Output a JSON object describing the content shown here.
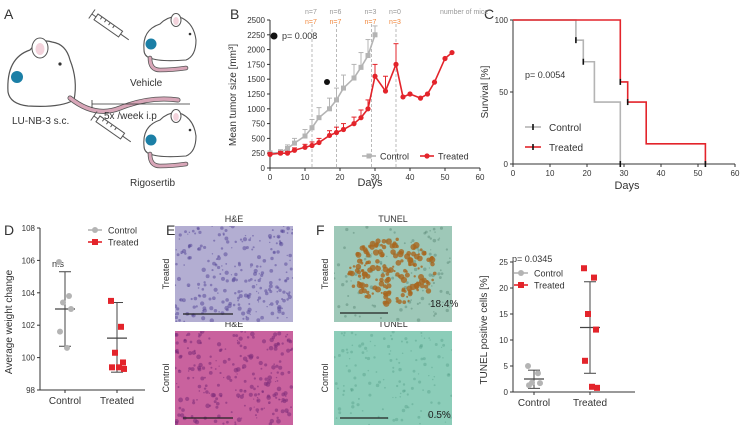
{
  "panel_letters": [
    "A",
    "B",
    "C",
    "D",
    "E",
    "F"
  ],
  "panel_a": {
    "model_label": "LU-NB-3 s.c.",
    "vehicle_label": "Vehicle",
    "dosing_label": "5x /week i.p",
    "drug_label": "Rigosertib",
    "colors": {
      "tumor": "#1b7fa6",
      "tail": "#d8a6b8",
      "mouse_outline": "#555555"
    }
  },
  "chart_data": [
    {
      "id": "B",
      "type": "line",
      "title": "",
      "xlabel": "Days",
      "ylabel": "Mean tumor size [mm³]",
      "xlim": [
        0,
        60
      ],
      "ylim": [
        0,
        2500
      ],
      "xticks": [
        "0",
        "10",
        "20",
        "30",
        "40",
        "50",
        "60"
      ],
      "yticks": [
        "0",
        "250",
        "500",
        "750",
        "1000",
        "1250",
        "1500",
        "1750",
        "2000",
        "2250",
        "2500"
      ],
      "pvalue": "p= 0.008",
      "mice_note": "number of mice",
      "mice_counts": [
        {
          "day": 12,
          "control": "n=7",
          "treated": "n=7"
        },
        {
          "day": 19,
          "control": "n=6",
          "treated": "n=7"
        },
        {
          "day": 29,
          "control": "n=3",
          "treated": "n=7"
        },
        {
          "day": 36,
          "control": "n=0",
          "treated": "n=3"
        }
      ],
      "series": [
        {
          "name": "Control",
          "color": "#b4b4b4",
          "x": [
            0,
            3,
            5,
            7,
            10,
            12,
            14,
            17,
            19,
            21,
            24,
            26,
            28,
            30
          ],
          "y": [
            250,
            260,
            330,
            420,
            540,
            680,
            850,
            1000,
            1150,
            1350,
            1520,
            1700,
            1900,
            2250
          ],
          "err": [
            40,
            50,
            60,
            80,
            110,
            140,
            170,
            180,
            200,
            220,
            230,
            250,
            270,
            150
          ]
        },
        {
          "name": "Treated",
          "color": "#e3242b",
          "x": [
            0,
            3,
            5,
            7,
            10,
            12,
            14,
            17,
            19,
            21,
            24,
            26,
            28,
            30,
            33,
            36,
            38,
            40,
            43,
            45,
            47,
            50,
            52
          ],
          "y": [
            230,
            250,
            250,
            300,
            350,
            380,
            430,
            550,
            600,
            650,
            750,
            850,
            1000,
            1550,
            1300,
            1750,
            1200,
            1250,
            1180,
            1250,
            1450,
            1850,
            1950
          ],
          "err": [
            30,
            30,
            30,
            40,
            50,
            60,
            70,
            80,
            90,
            100,
            110,
            130,
            150,
            200,
            250,
            350,
            0,
            0,
            0,
            0,
            0,
            0,
            0
          ]
        }
      ]
    },
    {
      "id": "C",
      "type": "line",
      "xlabel": "Days",
      "ylabel": "Survival [%]",
      "xlim": [
        0,
        60
      ],
      "ylim": [
        0,
        100
      ],
      "xticks": [
        "0",
        "10",
        "20",
        "30",
        "40",
        "50",
        "60"
      ],
      "yticks": [
        "0",
        "50",
        "100"
      ],
      "pvalue": "p= 0.0054",
      "series": [
        {
          "name": "Control",
          "color": "#b4b4b4",
          "steps": [
            [
              0,
              100
            ],
            [
              17,
              100
            ],
            [
              17,
              86
            ],
            [
              19,
              86
            ],
            [
              19,
              71
            ],
            [
              22,
              71
            ],
            [
              22,
              43
            ],
            [
              29,
              43
            ],
            [
              29,
              0
            ]
          ],
          "ticks": [
            [
              17,
              86
            ],
            [
              19,
              71
            ],
            [
              29,
              0
            ]
          ]
        },
        {
          "name": "Treated",
          "color": "#e3242b",
          "steps": [
            [
              0,
              100
            ],
            [
              29,
              100
            ],
            [
              29,
              57
            ],
            [
              31,
              57
            ],
            [
              31,
              43
            ],
            [
              36,
              43
            ],
            [
              36,
              14
            ],
            [
              52,
              14
            ],
            [
              52,
              0
            ]
          ],
          "ticks": [
            [
              29,
              57
            ],
            [
              31,
              43
            ],
            [
              52,
              0
            ]
          ]
        }
      ]
    },
    {
      "id": "D",
      "type": "scatter",
      "ylabel": "Average weight change",
      "ylim": [
        98,
        108
      ],
      "yticks": [
        "98",
        "100",
        "102",
        "104",
        "106",
        "108"
      ],
      "categories": [
        "Control",
        "Treated"
      ],
      "significance": "n.s",
      "series": [
        {
          "name": "Control",
          "color": "#b4b4b4",
          "marker": "circle",
          "values": [
            105.9,
            103.8,
            103.4,
            103.0,
            101.6,
            100.6
          ],
          "mean": 103.0,
          "sd_low": 100.7,
          "sd_high": 105.3
        },
        {
          "name": "Treated",
          "color": "#e3242b",
          "marker": "square",
          "values": [
            103.5,
            101.9,
            100.3,
            99.7,
            99.4,
            99.4,
            99.3
          ],
          "mean": 101.2,
          "sd_low": 99.1,
          "sd_high": 103.4
        }
      ]
    },
    {
      "id": "F-plot",
      "type": "scatter",
      "ylabel": "TUNEL positive cells [%]",
      "ylim": [
        0,
        25
      ],
      "yticks": [
        "0",
        "5",
        "10",
        "15",
        "20",
        "25"
      ],
      "categories": [
        "Control",
        "Treated"
      ],
      "pvalue": "p= 0.0345",
      "series": [
        {
          "name": "Control",
          "color": "#b4b4b4",
          "marker": "circle",
          "values": [
            5.0,
            3.6,
            1.8,
            1.7,
            1.3
          ],
          "mean": 2.5,
          "sd_low": 0.7,
          "sd_high": 4.2
        },
        {
          "name": "Treated",
          "color": "#e3242b",
          "marker": "square",
          "values": [
            23.8,
            22.0,
            15.0,
            12.0,
            6.0,
            1.0,
            0.8
          ],
          "mean": 12.4,
          "sd_low": 3.6,
          "sd_high": 21.2
        }
      ]
    }
  ],
  "panel_e": {
    "top_title": "H&E",
    "bottom_title": "H&E",
    "top_row_label": "Treated",
    "bottom_row_label": "Control",
    "colors": {
      "top_bg": "#b3aed2",
      "bottom_bg": "#c9629e"
    }
  },
  "panel_f": {
    "top_title": "TUNEL",
    "bottom_title": "TUNEL",
    "top_row_label": "Treated",
    "bottom_row_label": "Control",
    "top_percent": "18.4%",
    "bottom_percent": "0.5%",
    "colors": {
      "top_bg": "#9ec8b8",
      "bottom_bg": "#8ccdb9",
      "stain": "#a8661f"
    }
  }
}
